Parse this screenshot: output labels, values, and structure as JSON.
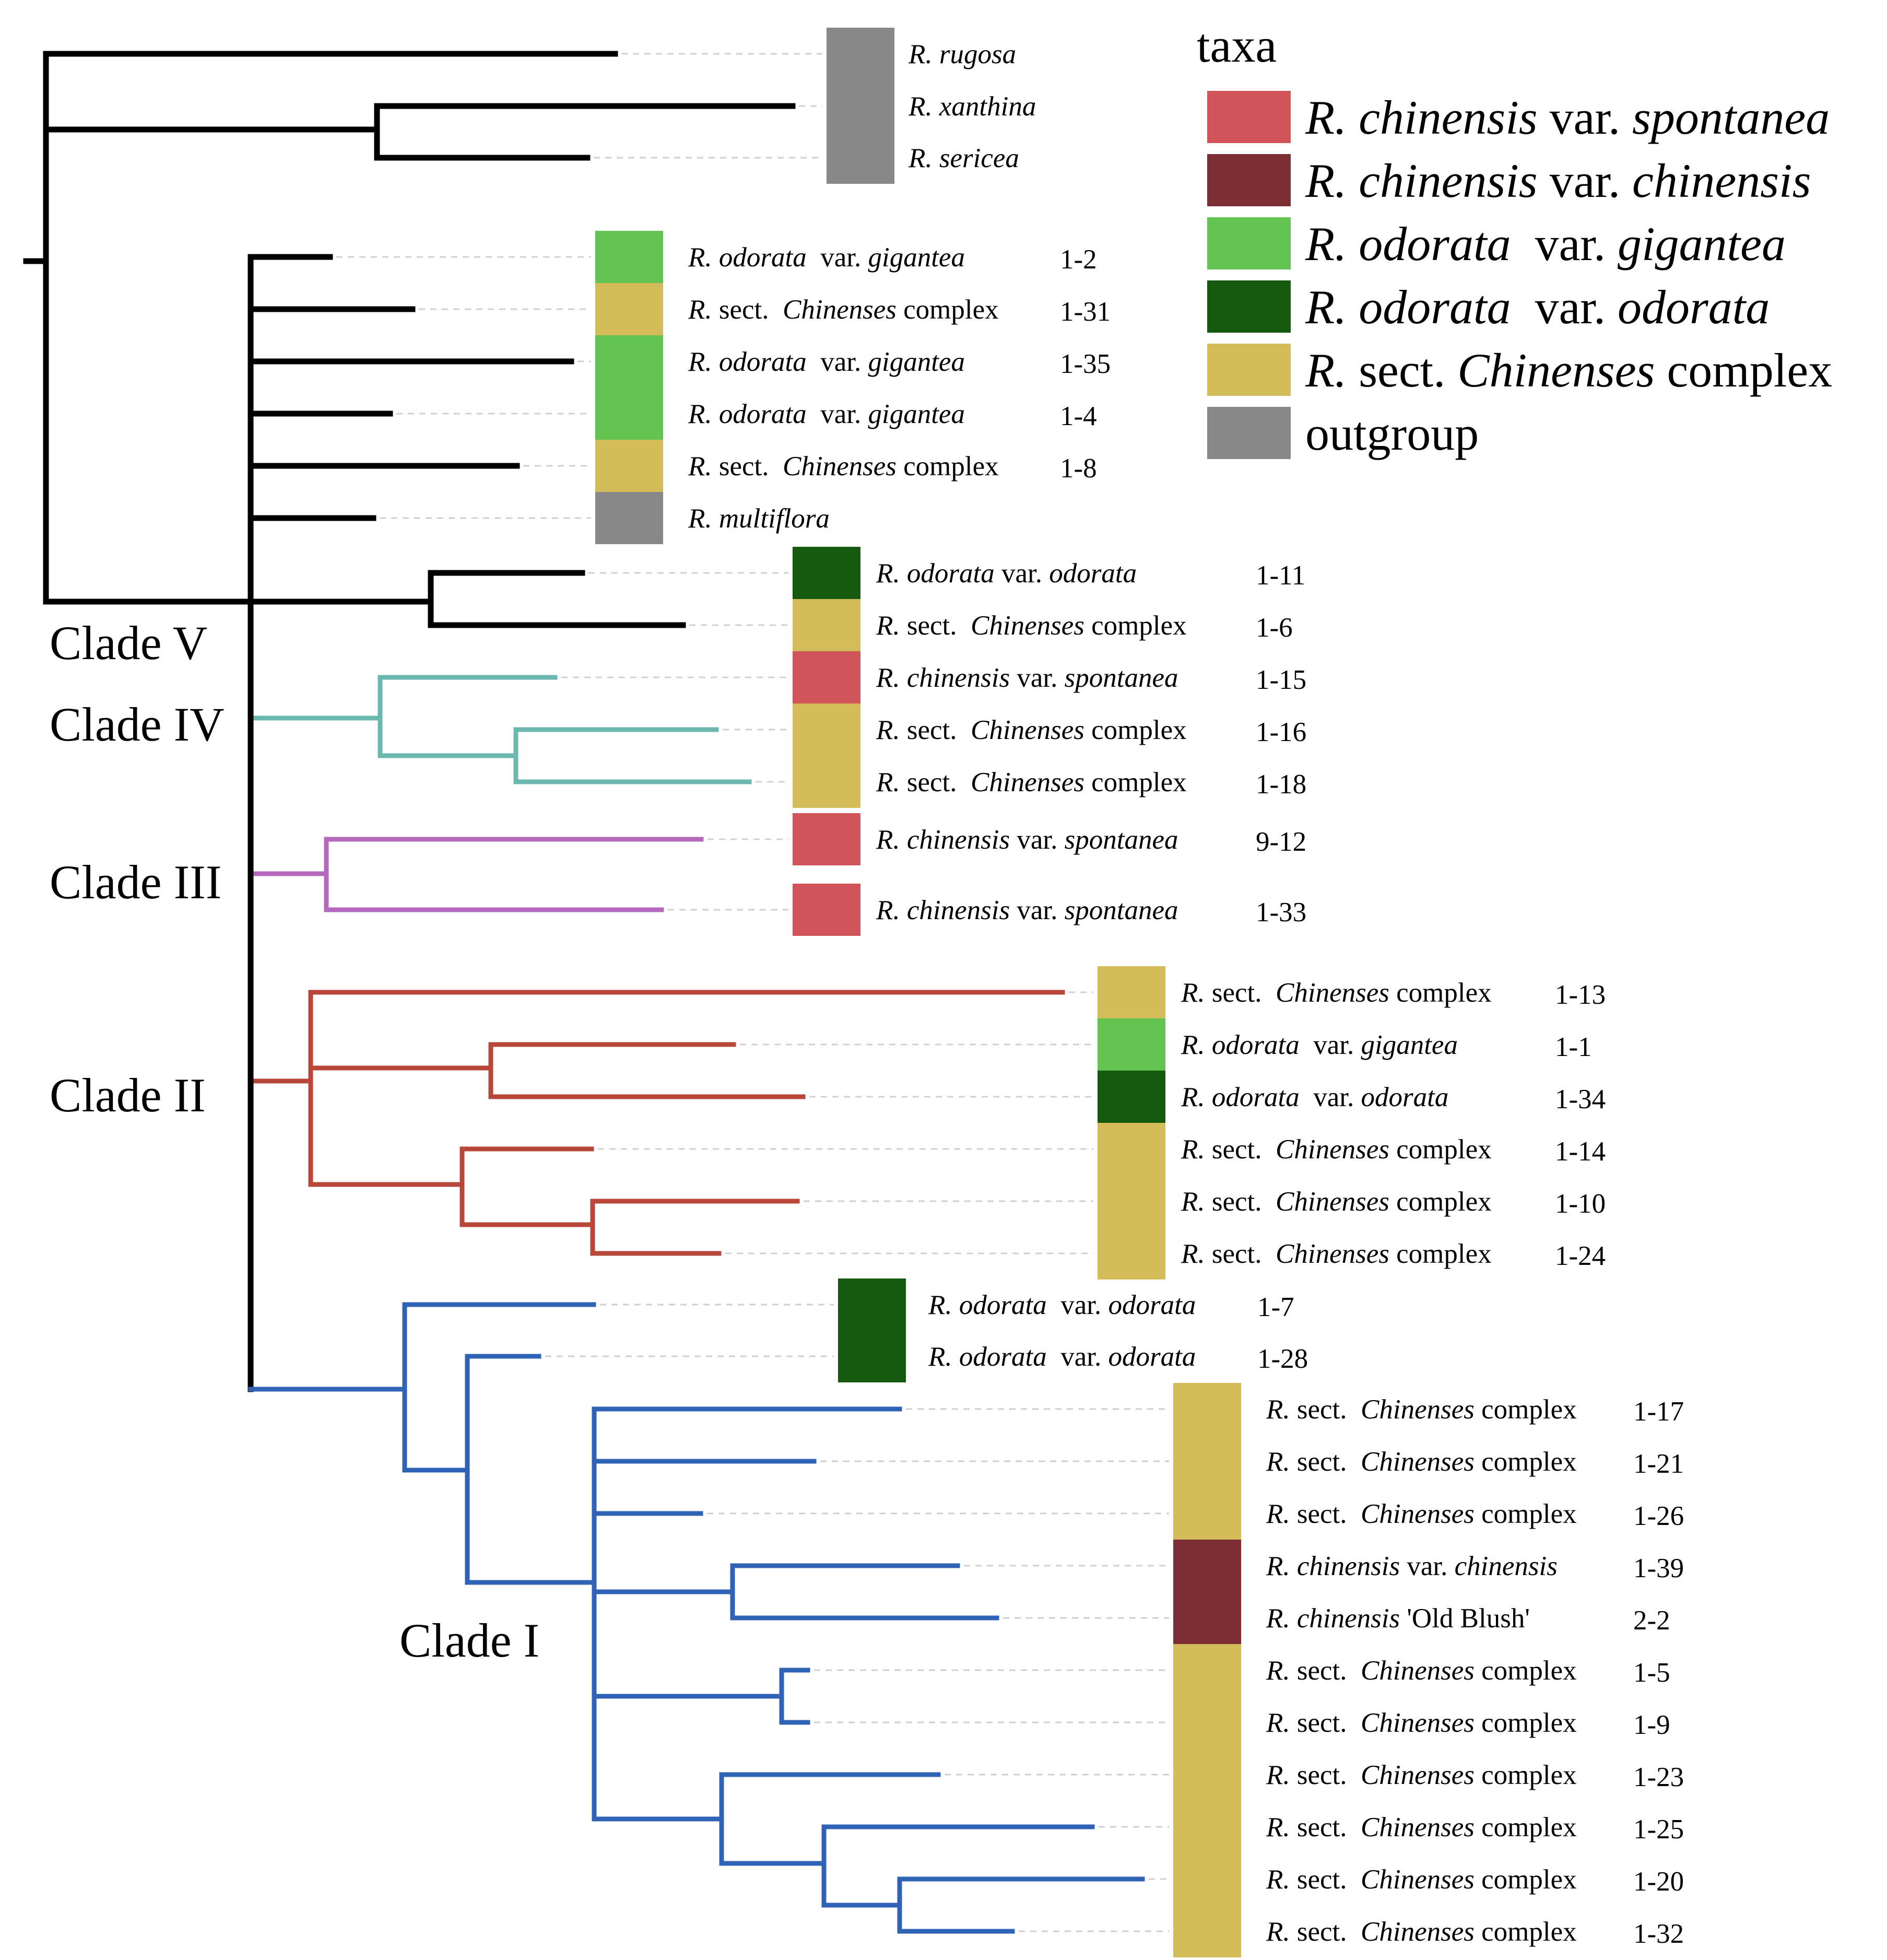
{
  "colors": {
    "clade_V": "#000000",
    "clade_IV": "#6cb8b0",
    "clade_III": "#b469bc",
    "clade_II": "#b8473a",
    "clade_I": "#2f63b7",
    "spontanea": "#d1545b",
    "chinensis": "#7b2d33",
    "gigantea": "#62c353",
    "odorata": "#15590f",
    "complex": "#d2bd5a",
    "outgroup": "#878787"
  },
  "legend": {
    "title": "taxa",
    "items": [
      {
        "key": "spontanea",
        "parts": [
          {
            "t": "R.",
            "i": true
          },
          {
            "t": " chinensis",
            "i": true
          },
          {
            "t": " var. "
          },
          {
            "t": "spontanea",
            "i": true
          }
        ]
      },
      {
        "key": "chinensis",
        "parts": [
          {
            "t": "R.",
            "i": true
          },
          {
            "t": " chinensis",
            "i": true
          },
          {
            "t": " var. "
          },
          {
            "t": "chinensis",
            "i": true
          }
        ]
      },
      {
        "key": "gigantea",
        "parts": [
          {
            "t": "R.",
            "i": true
          },
          {
            "t": " odorata",
            "i": true
          },
          {
            "t": "  var. "
          },
          {
            "t": "gigantea",
            "i": true
          }
        ]
      },
      {
        "key": "odorata",
        "parts": [
          {
            "t": "R.",
            "i": true
          },
          {
            "t": " odorata",
            "i": true
          },
          {
            "t": "  var. "
          },
          {
            "t": "odorata",
            "i": true
          }
        ]
      },
      {
        "key": "complex",
        "parts": [
          {
            "t": "R.",
            "i": true
          },
          {
            "t": " sect. "
          },
          {
            "t": "Chinenses",
            "i": true
          },
          {
            "t": " complex"
          }
        ]
      },
      {
        "key": "outgroup",
        "parts": [
          {
            "t": "outgroup"
          }
        ]
      }
    ]
  },
  "clade_labels": [
    "Clade V",
    "Clade IV",
    "Clade III",
    "Clade II",
    "Clade I"
  ],
  "tips": [
    {
      "parts": [
        {
          "t": "R. rugosa",
          "i": true
        }
      ],
      "code": "",
      "taxon": "outgroup"
    },
    {
      "parts": [
        {
          "t": "R. xanthina",
          "i": true
        }
      ],
      "code": "",
      "taxon": "outgroup"
    },
    {
      "parts": [
        {
          "t": "R. sericea",
          "i": true
        }
      ],
      "code": "",
      "taxon": "outgroup"
    },
    {
      "parts": [
        {
          "t": "R. odorata",
          "i": true
        },
        {
          "t": "  var. "
        },
        {
          "t": "gigantea",
          "i": true
        }
      ],
      "code": "1-2",
      "taxon": "gigantea"
    },
    {
      "parts": [
        {
          "t": "R.",
          "i": true
        },
        {
          "t": " sect.  "
        },
        {
          "t": "Chinenses",
          "i": true
        },
        {
          "t": " complex"
        }
      ],
      "code": "1-31",
      "taxon": "complex"
    },
    {
      "parts": [
        {
          "t": "R. odorata",
          "i": true
        },
        {
          "t": "  var. "
        },
        {
          "t": "gigantea",
          "i": true
        }
      ],
      "code": "1-35",
      "taxon": "gigantea"
    },
    {
      "parts": [
        {
          "t": "R. odorata",
          "i": true
        },
        {
          "t": "  var. "
        },
        {
          "t": "gigantea",
          "i": true
        }
      ],
      "code": "1-4",
      "taxon": "gigantea"
    },
    {
      "parts": [
        {
          "t": "R.",
          "i": true
        },
        {
          "t": " sect.  "
        },
        {
          "t": "Chinenses",
          "i": true
        },
        {
          "t": " complex"
        }
      ],
      "code": "1-8",
      "taxon": "complex"
    },
    {
      "parts": [
        {
          "t": "R. multiflora",
          "i": true
        }
      ],
      "code": "",
      "taxon": "outgroup"
    },
    {
      "parts": [
        {
          "t": "R. odorata",
          "i": true
        },
        {
          "t": " var. "
        },
        {
          "t": "odorata",
          "i": true
        }
      ],
      "code": "1-11",
      "taxon": "odorata"
    },
    {
      "parts": [
        {
          "t": "R.",
          "i": true
        },
        {
          "t": " sect.  "
        },
        {
          "t": "Chinenses",
          "i": true
        },
        {
          "t": " complex"
        }
      ],
      "code": "1-6",
      "taxon": "complex"
    },
    {
      "parts": [
        {
          "t": "R. chinensis",
          "i": true
        },
        {
          "t": " var. "
        },
        {
          "t": "spontanea",
          "i": true
        }
      ],
      "code": "1-15",
      "taxon": "spontanea"
    },
    {
      "parts": [
        {
          "t": "R.",
          "i": true
        },
        {
          "t": " sect.  "
        },
        {
          "t": "Chinenses",
          "i": true
        },
        {
          "t": " complex"
        }
      ],
      "code": "1-16",
      "taxon": "complex"
    },
    {
      "parts": [
        {
          "t": "R.",
          "i": true
        },
        {
          "t": " sect.  "
        },
        {
          "t": "Chinenses",
          "i": true
        },
        {
          "t": " complex"
        }
      ],
      "code": "1-18",
      "taxon": "complex"
    },
    {
      "parts": [
        {
          "t": "R. chinensis",
          "i": true
        },
        {
          "t": " var. "
        },
        {
          "t": "spontanea",
          "i": true
        }
      ],
      "code": "9-12",
      "taxon": "spontanea"
    },
    {
      "parts": [
        {
          "t": "R. chinensis",
          "i": true
        },
        {
          "t": " var. "
        },
        {
          "t": "spontanea",
          "i": true
        }
      ],
      "code": "1-33",
      "taxon": "spontanea"
    },
    {
      "parts": [
        {
          "t": "R.",
          "i": true
        },
        {
          "t": " sect.  "
        },
        {
          "t": "Chinenses",
          "i": true
        },
        {
          "t": " complex"
        }
      ],
      "code": "1-13",
      "taxon": "complex"
    },
    {
      "parts": [
        {
          "t": "R. odorata",
          "i": true
        },
        {
          "t": "  var. "
        },
        {
          "t": "gigantea",
          "i": true
        }
      ],
      "code": "1-1",
      "taxon": "gigantea"
    },
    {
      "parts": [
        {
          "t": "R. odorata",
          "i": true
        },
        {
          "t": "  var. "
        },
        {
          "t": "odorata",
          "i": true
        }
      ],
      "code": "1-34",
      "taxon": "odorata"
    },
    {
      "parts": [
        {
          "t": "R.",
          "i": true
        },
        {
          "t": " sect.  "
        },
        {
          "t": "Chinenses",
          "i": true
        },
        {
          "t": " complex"
        }
      ],
      "code": "1-14",
      "taxon": "complex"
    },
    {
      "parts": [
        {
          "t": "R.",
          "i": true
        },
        {
          "t": " sect.  "
        },
        {
          "t": "Chinenses",
          "i": true
        },
        {
          "t": " complex"
        }
      ],
      "code": "1-10",
      "taxon": "complex"
    },
    {
      "parts": [
        {
          "t": "R.",
          "i": true
        },
        {
          "t": " sect.  "
        },
        {
          "t": "Chinenses",
          "i": true
        },
        {
          "t": " complex"
        }
      ],
      "code": "1-24",
      "taxon": "complex"
    },
    {
      "parts": [
        {
          "t": "R. odorata",
          "i": true
        },
        {
          "t": "  var. "
        },
        {
          "t": "odorata",
          "i": true
        }
      ],
      "code": "1-7",
      "taxon": "odorata"
    },
    {
      "parts": [
        {
          "t": "R. odorata",
          "i": true
        },
        {
          "t": "  var. "
        },
        {
          "t": "odorata",
          "i": true
        }
      ],
      "code": "1-28",
      "taxon": "odorata"
    },
    {
      "parts": [
        {
          "t": "R.",
          "i": true
        },
        {
          "t": " sect.  "
        },
        {
          "t": "Chinenses",
          "i": true
        },
        {
          "t": " complex"
        }
      ],
      "code": "1-17",
      "taxon": "complex"
    },
    {
      "parts": [
        {
          "t": "R.",
          "i": true
        },
        {
          "t": " sect.  "
        },
        {
          "t": "Chinenses",
          "i": true
        },
        {
          "t": " complex"
        }
      ],
      "code": "1-21",
      "taxon": "complex"
    },
    {
      "parts": [
        {
          "t": "R.",
          "i": true
        },
        {
          "t": " sect.  "
        },
        {
          "t": "Chinenses",
          "i": true
        },
        {
          "t": " complex"
        }
      ],
      "code": "1-26",
      "taxon": "complex"
    },
    {
      "parts": [
        {
          "t": "R. chinensis",
          "i": true
        },
        {
          "t": " var. "
        },
        {
          "t": "chinensis",
          "i": true
        }
      ],
      "code": "1-39",
      "taxon": "chinensis"
    },
    {
      "parts": [
        {
          "t": "R. chinensis",
          "i": true
        },
        {
          "t": " 'Old Blush'"
        }
      ],
      "code": "2-2",
      "taxon": "chinensis"
    },
    {
      "parts": [
        {
          "t": "R.",
          "i": true
        },
        {
          "t": " sect.  "
        },
        {
          "t": "Chinenses",
          "i": true
        },
        {
          "t": " complex"
        }
      ],
      "code": "1-5",
      "taxon": "complex"
    },
    {
      "parts": [
        {
          "t": "R.",
          "i": true
        },
        {
          "t": " sect.  "
        },
        {
          "t": "Chinenses",
          "i": true
        },
        {
          "t": " complex"
        }
      ],
      "code": "1-9",
      "taxon": "complex"
    },
    {
      "parts": [
        {
          "t": "R.",
          "i": true
        },
        {
          "t": " sect.  "
        },
        {
          "t": "Chinenses",
          "i": true
        },
        {
          "t": " complex"
        }
      ],
      "code": "1-23",
      "taxon": "complex"
    },
    {
      "parts": [
        {
          "t": "R.",
          "i": true
        },
        {
          "t": " sect.  "
        },
        {
          "t": "Chinenses",
          "i": true
        },
        {
          "t": " complex"
        }
      ],
      "code": "1-25",
      "taxon": "complex"
    },
    {
      "parts": [
        {
          "t": "R.",
          "i": true
        },
        {
          "t": " sect.  "
        },
        {
          "t": "Chinenses",
          "i": true
        },
        {
          "t": " complex"
        }
      ],
      "code": "1-20",
      "taxon": "complex"
    },
    {
      "parts": [
        {
          "t": "R.",
          "i": true
        },
        {
          "t": " sect.  "
        },
        {
          "t": "Chinenses",
          "i": true
        },
        {
          "t": " complex"
        }
      ],
      "code": "1-32",
      "taxon": "complex"
    }
  ]
}
